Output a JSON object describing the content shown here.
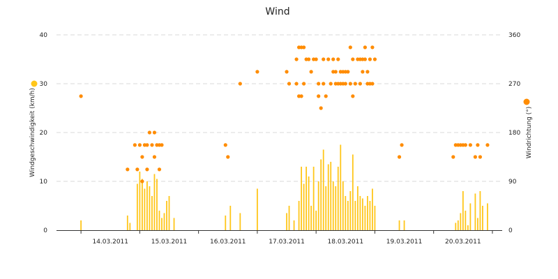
{
  "chart_data": {
    "type": "bar+scatter",
    "title": "Wind",
    "x": {
      "type": "datetime",
      "range": [
        "2011-03-13T14:00",
        "2011-03-21T04:00"
      ],
      "tick_labels": [
        "14.03.2011",
        "15.03.2011",
        "16.03.2011",
        "17.03.2011",
        "18.03.2011",
        "19.03.2011",
        "20.03.2011"
      ]
    },
    "y_left": {
      "label": "Windgeschwindigkeit (km/h)",
      "ylim": [
        0,
        40
      ],
      "ticks": [
        "0",
        "10",
        "20",
        "30",
        "40"
      ]
    },
    "y_right": {
      "label": "Windrichtung (°)",
      "ylim": [
        0,
        360
      ],
      "ticks": [
        "0",
        "90",
        "180",
        "270",
        "360"
      ]
    },
    "grid": true,
    "legend": "axis-markers",
    "colors": {
      "speed": "#ffc61a",
      "direction": "#ff8c00"
    },
    "series": [
      {
        "axis": "left",
        "mark": "bar",
        "values": [
          [
            "2011-03-14T00:00",
            2
          ],
          [
            "2011-03-14T19:00",
            3
          ],
          [
            "2011-03-14T20:00",
            1.5
          ],
          [
            "2011-03-14T23:00",
            9.5
          ],
          [
            "2011-03-15T00:00",
            12
          ],
          [
            "2011-03-15T01:00",
            10.5
          ],
          [
            "2011-03-15T02:00",
            8.5
          ],
          [
            "2011-03-15T03:00",
            10
          ],
          [
            "2011-03-15T04:00",
            9
          ],
          [
            "2011-03-15T05:00",
            7
          ],
          [
            "2011-03-15T06:00",
            11.5
          ],
          [
            "2011-03-15T07:00",
            10.5
          ],
          [
            "2011-03-15T08:00",
            4
          ],
          [
            "2011-03-15T09:00",
            2.5
          ],
          [
            "2011-03-15T10:00",
            3.5
          ],
          [
            "2011-03-15T11:00",
            6
          ],
          [
            "2011-03-15T12:00",
            7
          ],
          [
            "2011-03-15T14:00",
            2.5
          ],
          [
            "2011-03-16T11:00",
            3
          ],
          [
            "2011-03-16T13:00",
            5
          ],
          [
            "2011-03-16T17:00",
            3.5
          ],
          [
            "2011-03-17T00:00",
            8.5
          ],
          [
            "2011-03-17T12:00",
            3.5
          ],
          [
            "2011-03-17T13:00",
            5
          ],
          [
            "2011-03-17T15:00",
            2
          ],
          [
            "2011-03-17T17:00",
            6
          ],
          [
            "2011-03-17T18:00",
            13
          ],
          [
            "2011-03-17T19:00",
            9.5
          ],
          [
            "2011-03-17T20:00",
            13
          ],
          [
            "2011-03-17T21:00",
            11
          ],
          [
            "2011-03-17T22:00",
            5
          ],
          [
            "2011-03-17T23:00",
            13
          ],
          [
            "2011-03-18T00:00",
            4
          ],
          [
            "2011-03-18T01:00",
            10
          ],
          [
            "2011-03-18T02:00",
            14.5
          ],
          [
            "2011-03-18T03:00",
            16.5
          ],
          [
            "2011-03-18T04:00",
            9
          ],
          [
            "2011-03-18T05:00",
            13.5
          ],
          [
            "2011-03-18T06:00",
            14
          ],
          [
            "2011-03-18T07:00",
            10
          ],
          [
            "2011-03-18T08:00",
            9
          ],
          [
            "2011-03-18T09:00",
            13
          ],
          [
            "2011-03-18T10:00",
            17.5
          ],
          [
            "2011-03-18T11:00",
            10
          ],
          [
            "2011-03-18T12:00",
            7
          ],
          [
            "2011-03-18T13:00",
            6
          ],
          [
            "2011-03-18T14:00",
            8
          ],
          [
            "2011-03-18T15:00",
            15.5
          ],
          [
            "2011-03-18T16:00",
            6
          ],
          [
            "2011-03-18T17:00",
            9
          ],
          [
            "2011-03-18T18:00",
            7
          ],
          [
            "2011-03-18T19:00",
            6.5
          ],
          [
            "2011-03-18T20:00",
            5
          ],
          [
            "2011-03-18T21:00",
            7
          ],
          [
            "2011-03-18T22:00",
            6
          ],
          [
            "2011-03-18T23:00",
            8.5
          ],
          [
            "2011-03-19T00:00",
            5
          ],
          [
            "2011-03-19T10:00",
            2
          ],
          [
            "2011-03-19T12:00",
            2
          ],
          [
            "2011-03-20T09:00",
            1.5
          ],
          [
            "2011-03-20T10:00",
            2
          ],
          [
            "2011-03-20T11:00",
            3.5
          ],
          [
            "2011-03-20T12:00",
            8
          ],
          [
            "2011-03-20T13:00",
            4
          ],
          [
            "2011-03-20T14:00",
            1
          ],
          [
            "2011-03-20T15:00",
            5.5
          ],
          [
            "2011-03-20T17:00",
            7.5
          ],
          [
            "2011-03-20T18:00",
            2.5
          ],
          [
            "2011-03-20T19:00",
            8
          ],
          [
            "2011-03-20T20:00",
            5
          ],
          [
            "2011-03-20T22:00",
            5.5
          ]
        ]
      },
      {
        "axis": "right",
        "mark": "scatter",
        "values": [
          [
            "2011-03-14T00:00",
            247
          ],
          [
            "2011-03-14T19:00",
            112
          ],
          [
            "2011-03-14T22:00",
            157
          ],
          [
            "2011-03-14T23:00",
            112
          ],
          [
            "2011-03-15T00:00",
            157
          ],
          [
            "2011-03-15T01:00",
            135
          ],
          [
            "2011-03-15T01:00",
            90
          ],
          [
            "2011-03-15T02:00",
            157
          ],
          [
            "2011-03-15T03:00",
            157
          ],
          [
            "2011-03-15T03:00",
            112
          ],
          [
            "2011-03-15T04:00",
            180
          ],
          [
            "2011-03-15T05:00",
            157
          ],
          [
            "2011-03-15T06:00",
            135
          ],
          [
            "2011-03-15T06:00",
            180
          ],
          [
            "2011-03-15T07:00",
            157
          ],
          [
            "2011-03-15T08:00",
            157
          ],
          [
            "2011-03-15T08:00",
            112
          ],
          [
            "2011-03-15T09:00",
            157
          ],
          [
            "2011-03-16T11:00",
            157
          ],
          [
            "2011-03-16T12:00",
            135
          ],
          [
            "2011-03-16T17:00",
            270
          ],
          [
            "2011-03-17T00:00",
            292
          ],
          [
            "2011-03-17T12:00",
            292
          ],
          [
            "2011-03-17T13:00",
            270
          ],
          [
            "2011-03-17T16:00",
            315
          ],
          [
            "2011-03-17T16:00",
            270
          ],
          [
            "2011-03-17T17:00",
            337
          ],
          [
            "2011-03-17T17:00",
            247
          ],
          [
            "2011-03-17T18:00",
            337
          ],
          [
            "2011-03-17T18:00",
            247
          ],
          [
            "2011-03-17T19:00",
            337
          ],
          [
            "2011-03-17T19:00",
            270
          ],
          [
            "2011-03-17T20:00",
            315
          ],
          [
            "2011-03-17T21:00",
            315
          ],
          [
            "2011-03-17T22:00",
            292
          ],
          [
            "2011-03-17T23:00",
            315
          ],
          [
            "2011-03-18T00:00",
            315
          ],
          [
            "2011-03-18T01:00",
            270
          ],
          [
            "2011-03-18T01:00",
            247
          ],
          [
            "2011-03-18T02:00",
            225
          ],
          [
            "2011-03-18T03:00",
            315
          ],
          [
            "2011-03-18T03:00",
            270
          ],
          [
            "2011-03-18T04:00",
            247
          ],
          [
            "2011-03-18T05:00",
            315
          ],
          [
            "2011-03-18T06:00",
            270
          ],
          [
            "2011-03-18T07:00",
            292
          ],
          [
            "2011-03-18T07:00",
            315
          ],
          [
            "2011-03-18T08:00",
            270
          ],
          [
            "2011-03-18T08:00",
            292
          ],
          [
            "2011-03-18T09:00",
            270
          ],
          [
            "2011-03-18T09:00",
            315
          ],
          [
            "2011-03-18T10:00",
            270
          ],
          [
            "2011-03-18T10:00",
            292
          ],
          [
            "2011-03-18T11:00",
            270
          ],
          [
            "2011-03-18T11:00",
            292
          ],
          [
            "2011-03-18T12:00",
            270
          ],
          [
            "2011-03-18T12:00",
            292
          ],
          [
            "2011-03-18T13:00",
            292
          ],
          [
            "2011-03-18T14:00",
            270
          ],
          [
            "2011-03-18T14:00",
            337
          ],
          [
            "2011-03-18T15:00",
            315
          ],
          [
            "2011-03-18T15:00",
            247
          ],
          [
            "2011-03-18T16:00",
            270
          ],
          [
            "2011-03-18T17:00",
            315
          ],
          [
            "2011-03-18T18:00",
            270
          ],
          [
            "2011-03-18T18:00",
            315
          ],
          [
            "2011-03-18T19:00",
            292
          ],
          [
            "2011-03-18T19:00",
            315
          ],
          [
            "2011-03-18T20:00",
            337
          ],
          [
            "2011-03-18T20:00",
            315
          ],
          [
            "2011-03-18T21:00",
            270
          ],
          [
            "2011-03-18T21:00",
            292
          ],
          [
            "2011-03-18T22:00",
            315
          ],
          [
            "2011-03-18T22:00",
            270
          ],
          [
            "2011-03-18T23:00",
            337
          ],
          [
            "2011-03-18T23:00",
            270
          ],
          [
            "2011-03-19T00:00",
            315
          ],
          [
            "2011-03-19T10:00",
            135
          ],
          [
            "2011-03-19T11:00",
            157
          ],
          [
            "2011-03-20T08:00",
            135
          ],
          [
            "2011-03-20T09:00",
            157
          ],
          [
            "2011-03-20T10:00",
            157
          ],
          [
            "2011-03-20T11:00",
            157
          ],
          [
            "2011-03-20T12:00",
            157
          ],
          [
            "2011-03-20T13:00",
            157
          ],
          [
            "2011-03-20T15:00",
            157
          ],
          [
            "2011-03-20T17:00",
            135
          ],
          [
            "2011-03-20T18:00",
            157
          ],
          [
            "2011-03-20T19:00",
            135
          ],
          [
            "2011-03-20T22:00",
            157
          ]
        ]
      }
    ]
  }
}
